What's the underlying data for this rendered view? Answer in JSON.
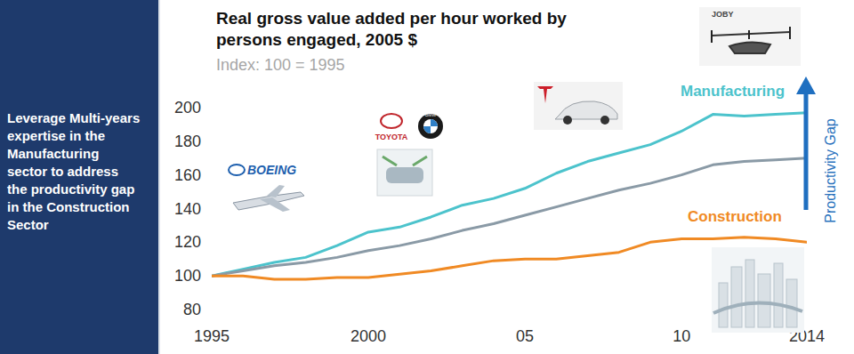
{
  "sidebar": {
    "text": "Leverage Multi-years expertise in the Manufacturing sector to address the productivity gap in the Construction Sector"
  },
  "chart_data": {
    "type": "line",
    "title": "Real gross value added per hour worked by persons engaged, 2005 $",
    "subtitle": "Index: 100 = 1995",
    "x": [
      1995,
      1996,
      1997,
      1998,
      1999,
      2000,
      2001,
      2002,
      2003,
      2004,
      2005,
      2006,
      2007,
      2008,
      2009,
      2010,
      2011,
      2012,
      2013,
      2014
    ],
    "series": [
      {
        "name": "Manufacturing",
        "color": "#4cc3cc",
        "values": [
          100,
          104,
          108,
          111,
          118,
          126,
          129,
          135,
          142,
          146,
          152,
          161,
          168,
          173,
          178,
          186,
          196,
          195,
          196,
          197
        ]
      },
      {
        "name": null,
        "color": "#8a9aa6",
        "values": [
          100,
          103,
          106,
          108,
          111,
          115,
          118,
          122,
          127,
          131,
          136,
          141,
          146,
          151,
          155,
          160,
          166,
          168,
          169,
          170
        ]
      },
      {
        "name": "Construction",
        "color": "#f08a24",
        "values": [
          100,
          100,
          98,
          98,
          99,
          99,
          101,
          103,
          106,
          109,
          110,
          110,
          112,
          114,
          120,
          122,
          122,
          123,
          122,
          120
        ]
      }
    ],
    "xlim": [
      1995,
      2014
    ],
    "xticks": [
      1995,
      2000,
      {
        "value": 2005,
        "label": "05"
      },
      {
        "value": 2010,
        "label": "10"
      },
      2014
    ],
    "ylim": [
      80,
      200
    ],
    "yticks": [
      80,
      100,
      120,
      140,
      160,
      180,
      200
    ],
    "grid": false,
    "annotations": [
      "Productivity Gap",
      "BOEING",
      "TOYOTA",
      "BMW",
      "JOBY"
    ]
  }
}
